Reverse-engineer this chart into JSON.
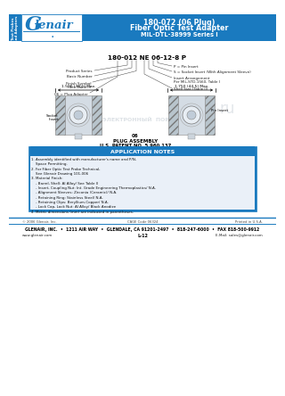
{
  "title_line1": "180-072 (06 Plug)",
  "title_line2": "Fiber Optic Test Adapter",
  "title_line3": "MIL-DTL-38999 Series I",
  "header_blue": "#1a7abf",
  "sidebar_text_top": "Test Probes",
  "sidebar_text_bot": "and Adapters",
  "part_number_label": "180-012 NE 06-12-8 P",
  "dim1": "1.500 (38.1) Max.",
  "dim2": "1.750 (44.5) Max.",
  "plug_label_1": "06",
  "plug_label_2": "PLUG ASSEMBLY",
  "plug_label_3": "U.S. PATENT NO. 5,960,137",
  "app_notes_title": "APPLICATION NOTES",
  "app_notes_bg": "#1a7abf",
  "footer_small_left": "© 2006 Glenair, Inc.",
  "footer_small_center": "CAGE Code 06324",
  "footer_small_right": "Printed in U.S.A.",
  "footer_main": "GLENAIR, INC.  •  1211 AIR WAY  •  GLENDALE, CA 91201-2497  •  818-247-6000  •  FAX 818-500-9912",
  "footer_sub_left": "www.glenair.com",
  "footer_sub_center": "L-12",
  "footer_sub_right": "E-Mail: sales@glenair.com",
  "bg_color": "#ffffff",
  "blue": "#1a7abf",
  "watermark_color": "#c5cdd5",
  "notes_text": "1. Assembly identified with manufacturer's name and P/N,\n    Space Permitting.\n2. For Fiber Optic Test Probe Technical,\n    See Glenair Drawing 101-006\n3. Material Finish:\n    - Barrel, Shell: Al Alloy/ See Table II\n    - Insert, Coupling Nut: Int. Grade Engineering Thermoplastics/ N.A.\n    - Alignment Sleeves: Zirconia (Ceramic)/ N.A.\n    - Retaining Ring: Stainless Steel/ N.A.\n    - Retaining Clips: Beryllium-Copper/ N.A.\n    - Lock Cap, Lock Nut: Al Alloy/ Black Anodize\n4. Metric dimensions (mm) are indicated in parentheses."
}
